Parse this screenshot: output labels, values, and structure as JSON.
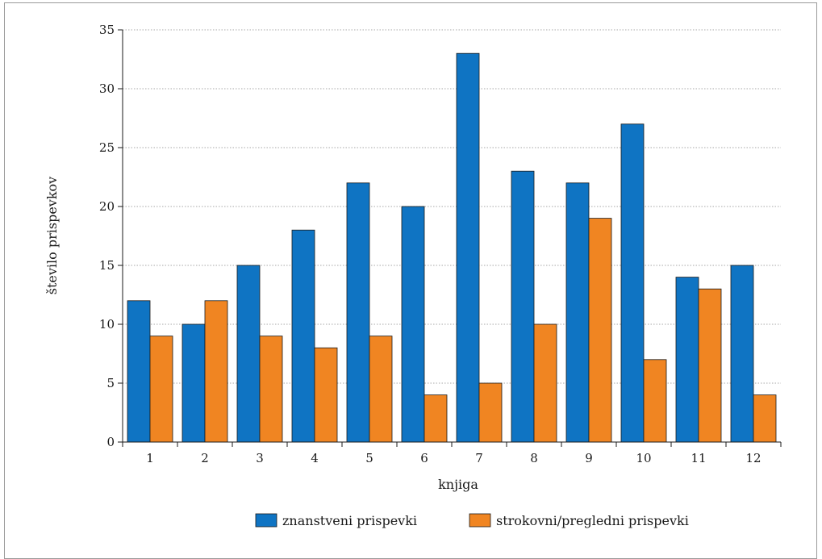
{
  "chart_data": {
    "type": "bar",
    "xlabel": "knjiga",
    "ylabel": "število prispevkov",
    "ylim": [
      0,
      35
    ],
    "yticks": [
      0,
      5,
      10,
      15,
      20,
      25,
      30,
      35
    ],
    "grid": true,
    "legend_position": "bottom",
    "categories": [
      "1",
      "2",
      "3",
      "4",
      "5",
      "6",
      "7",
      "8",
      "9",
      "10",
      "11",
      "12"
    ],
    "series": [
      {
        "name": "znanstveni prispevki",
        "color": "#0f74c3",
        "values": [
          12,
          10,
          15,
          18,
          22,
          20,
          33,
          23,
          22,
          27,
          14,
          15
        ]
      },
      {
        "name": "strokovni/pregledni prispevki",
        "color": "#f08522",
        "values": [
          9,
          12,
          9,
          8,
          9,
          4,
          5,
          10,
          19,
          7,
          13,
          4
        ]
      }
    ]
  }
}
